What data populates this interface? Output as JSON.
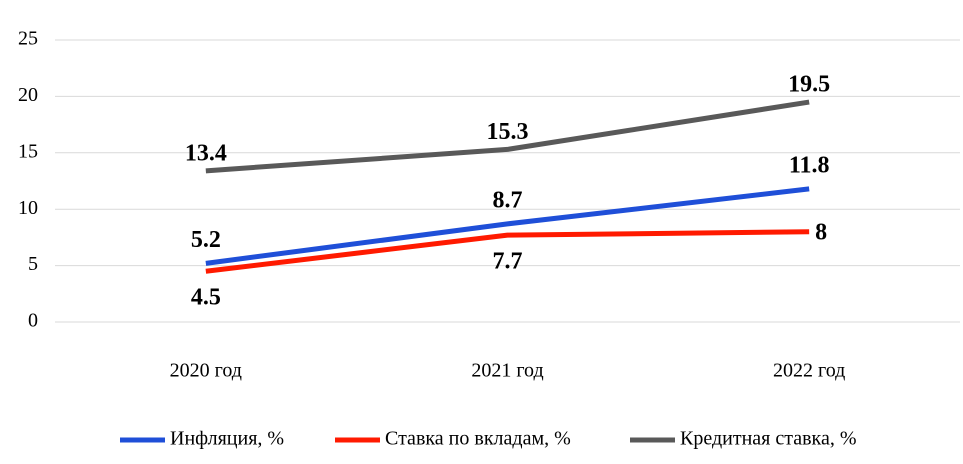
{
  "chart_data": {
    "type": "line",
    "categories": [
      "2020 год",
      "2021 год",
      "2022 год"
    ],
    "series": [
      {
        "name": "Инфляция, %",
        "color": "#1f4fd8",
        "values": [
          5.2,
          8.7,
          11.8
        ]
      },
      {
        "name": "Ставка по вкладам, %",
        "color": "#ff1a00",
        "values": [
          4.5,
          7.7,
          8
        ]
      },
      {
        "name": "Кредитная ставка, %",
        "color": "#595959",
        "values": [
          13.4,
          15.3,
          19.5
        ]
      }
    ],
    "ylim": [
      0,
      25
    ],
    "yticks": [
      0,
      5,
      10,
      15,
      20,
      25
    ],
    "grid": true,
    "legend": "bottom"
  }
}
